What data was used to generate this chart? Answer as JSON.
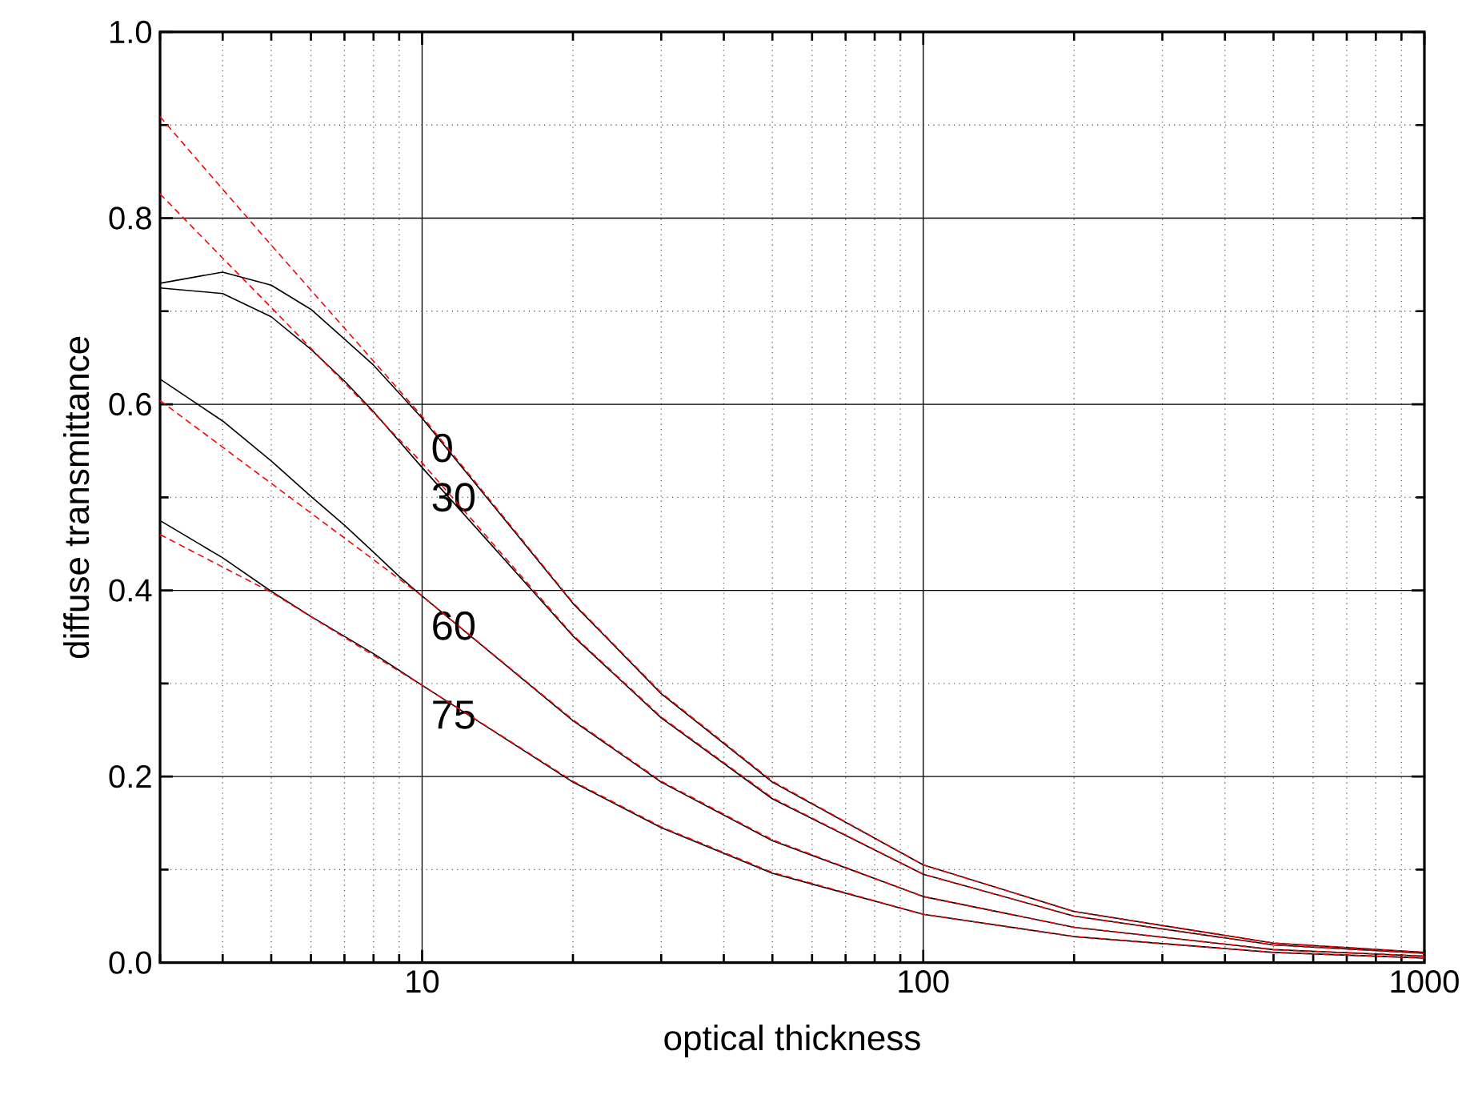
{
  "chart_data": {
    "type": "line",
    "xlabel": "optical thickness",
    "ylabel": "diffuse transmittance",
    "log": "x",
    "grid": true,
    "xlim": [
      3,
      1000
    ],
    "ylim": [
      0,
      1
    ],
    "xticks": [
      {
        "value": 3,
        "label": null
      },
      {
        "value": 4,
        "label": null
      },
      {
        "value": 5,
        "label": null
      },
      {
        "value": 6,
        "label": null
      },
      {
        "value": 7,
        "label": null
      },
      {
        "value": 8,
        "label": null
      },
      {
        "value": 9,
        "label": null
      },
      10,
      {
        "value": 20,
        "label": null
      },
      {
        "value": 30,
        "label": null
      },
      {
        "value": 40,
        "label": null
      },
      {
        "value": 50,
        "label": null
      },
      {
        "value": 60,
        "label": null
      },
      {
        "value": 70,
        "label": null
      },
      {
        "value": 80,
        "label": null
      },
      {
        "value": 90,
        "label": null
      },
      100,
      {
        "value": 200,
        "label": null
      },
      {
        "value": 300,
        "label": null
      },
      {
        "value": 400,
        "label": null
      },
      {
        "value": 500,
        "label": null
      },
      {
        "value": 600,
        "label": null
      },
      {
        "value": 700,
        "label": null
      },
      {
        "value": 800,
        "label": null
      },
      {
        "value": 900,
        "label": null
      },
      1000
    ],
    "yticks": [
      {
        "value": 0,
        "label": "0.0"
      },
      {
        "value": 0.1,
        "label": null
      },
      0.2,
      {
        "value": 0.3,
        "label": null
      },
      0.4,
      {
        "value": 0.5,
        "label": null
      },
      0.6,
      {
        "value": 0.7,
        "label": null
      },
      0.8,
      {
        "value": 0.9,
        "label": null
      },
      {
        "value": 1,
        "label": "1.0"
      }
    ],
    "series": [
      {
        "name": "0",
        "color": "#000000",
        "line_style": "solid",
        "x": [
          3,
          4,
          5,
          6,
          7,
          8,
          10,
          20,
          30,
          50,
          100,
          200,
          500,
          1000
        ],
        "values": [
          0.73,
          0.742,
          0.728,
          0.702,
          0.67,
          0.642,
          0.585,
          0.386,
          0.289,
          0.194,
          0.105,
          0.055,
          0.021,
          0.011
        ]
      },
      {
        "name": "30",
        "color": "#000000",
        "line_style": "solid",
        "x": [
          3,
          4,
          5,
          6,
          7,
          8,
          10,
          20,
          30,
          50,
          100,
          200,
          500,
          1000
        ],
        "values": [
          0.725,
          0.719,
          0.694,
          0.659,
          0.625,
          0.592,
          0.532,
          0.351,
          0.263,
          0.176,
          0.095,
          0.05,
          0.019,
          0.01
        ]
      },
      {
        "name": "60",
        "color": "#000000",
        "line_style": "solid",
        "x": [
          3,
          4,
          5,
          6,
          7,
          8,
          9,
          10,
          20,
          30,
          50,
          100,
          200,
          500,
          1000
        ],
        "values": [
          0.627,
          0.582,
          0.539,
          0.501,
          0.47,
          0.441,
          0.415,
          0.394,
          0.26,
          0.194,
          0.131,
          0.071,
          0.038,
          0.014,
          0.007
        ]
      },
      {
        "name": "75",
        "color": "#000000",
        "line_style": "solid",
        "x": [
          3,
          4,
          5,
          6,
          8,
          10,
          20,
          30,
          50,
          100,
          200,
          500,
          1000
        ],
        "values": [
          0.475,
          0.435,
          0.399,
          0.372,
          0.332,
          0.298,
          0.194,
          0.145,
          0.096,
          0.052,
          0.028,
          0.011,
          0.005
        ]
      },
      {
        "color": "#ff0000",
        "line_style": "dashed",
        "x": [
          3,
          4,
          5,
          10,
          20,
          30,
          50,
          100,
          200,
          500,
          1000
        ],
        "values": [
          0.909,
          0.831,
          0.771,
          0.587,
          0.387,
          0.29,
          0.195,
          0.105,
          0.055,
          0.021,
          0.011
        ]
      },
      {
        "color": "#ff0000",
        "line_style": "dashed",
        "x": [
          3,
          4,
          5,
          10,
          20,
          30,
          50,
          100,
          200,
          500,
          1000
        ],
        "values": [
          0.826,
          0.757,
          0.704,
          0.537,
          0.352,
          0.264,
          0.177,
          0.095,
          0.05,
          0.019,
          0.01
        ]
      },
      {
        "color": "#ff0000",
        "line_style": "dashed",
        "x": [
          3,
          5,
          10,
          20,
          30,
          50,
          100,
          200,
          500,
          1000
        ],
        "values": [
          0.604,
          0.515,
          0.394,
          0.261,
          0.195,
          0.132,
          0.071,
          0.038,
          0.014,
          0.007
        ]
      },
      {
        "color": "#ff0000",
        "line_style": "dashed",
        "x": [
          3,
          5,
          10,
          20,
          30,
          50,
          100,
          200,
          500,
          1000
        ],
        "values": [
          0.46,
          0.398,
          0.298,
          0.195,
          0.146,
          0.097,
          0.052,
          0.028,
          0.011,
          0.005
        ]
      }
    ]
  }
}
